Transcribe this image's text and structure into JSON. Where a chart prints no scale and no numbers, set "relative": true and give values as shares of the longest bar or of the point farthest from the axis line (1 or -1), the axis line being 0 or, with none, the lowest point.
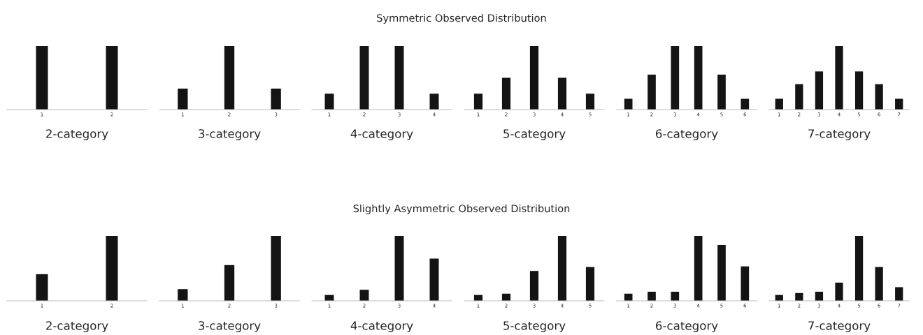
{
  "chart_data": [
    {
      "type": "bar",
      "xlabel": "2-category",
      "categories": [
        "1",
        "2"
      ],
      "values": [
        1,
        1
      ],
      "color": "#141414",
      "relative": true,
      "grid": false,
      "legend": false
    },
    {
      "type": "bar",
      "xlabel": "3-category",
      "categories": [
        "1",
        "2",
        "3"
      ],
      "values": [
        0.33,
        1,
        0.33
      ],
      "color": "#141414",
      "relative": true,
      "grid": false,
      "legend": false
    },
    {
      "type": "bar",
      "xlabel": "4-category",
      "categories": [
        "1",
        "2",
        "3",
        "4"
      ],
      "values": [
        0.25,
        1,
        1,
        0.25
      ],
      "color": "#141414",
      "relative": true,
      "grid": false,
      "legend": false
    },
    {
      "type": "bar",
      "title": "Symmetric Observed Distribution",
      "xlabel": "5-category",
      "categories": [
        "1",
        "2",
        "3",
        "4",
        "5"
      ],
      "values": [
        0.25,
        0.5,
        1,
        0.5,
        0.25
      ],
      "color": "#141414",
      "relative": true,
      "grid": false,
      "legend": false
    },
    {
      "type": "bar",
      "xlabel": "6-category",
      "categories": [
        "1",
        "2",
        "3",
        "4",
        "5",
        "6"
      ],
      "values": [
        0.17,
        0.55,
        1,
        1,
        0.55,
        0.17
      ],
      "color": "#141414",
      "relative": true,
      "grid": false,
      "legend": false
    },
    {
      "type": "bar",
      "xlabel": "7-category",
      "categories": [
        "1",
        "2",
        "3",
        "4",
        "5",
        "6",
        "7"
      ],
      "values": [
        0.17,
        0.4,
        0.6,
        1,
        0.6,
        0.4,
        0.17
      ],
      "color": "#141414",
      "relative": true,
      "grid": false,
      "legend": false
    },
    {
      "type": "bar",
      "xlabel": "2-category",
      "categories": [
        "1",
        "2"
      ],
      "values": [
        0.41,
        1
      ],
      "color": "#141414",
      "relative": true,
      "grid": false,
      "legend": false
    },
    {
      "type": "bar",
      "xlabel": "3-category",
      "categories": [
        "1",
        "2",
        "3"
      ],
      "values": [
        0.18,
        0.55,
        1
      ],
      "color": "#141414",
      "relative": true,
      "grid": false,
      "legend": false
    },
    {
      "type": "bar",
      "xlabel": "4-category",
      "categories": [
        "1",
        "2",
        "3",
        "4"
      ],
      "values": [
        0.09,
        0.17,
        1,
        0.65
      ],
      "color": "#141414",
      "relative": true,
      "grid": false,
      "legend": false
    },
    {
      "type": "bar",
      "title": "Slightly Asymmetric Observed Distribution",
      "xlabel": "5-category",
      "categories": [
        "1",
        "2",
        "3",
        "4",
        "5"
      ],
      "values": [
        0.09,
        0.11,
        0.46,
        1,
        0.52
      ],
      "color": "#141414",
      "relative": true,
      "grid": false,
      "legend": false
    },
    {
      "type": "bar",
      "xlabel": "6-category",
      "categories": [
        "1",
        "2",
        "3",
        "4",
        "5",
        "6"
      ],
      "values": [
        0.11,
        0.14,
        0.14,
        1,
        0.86,
        0.53
      ],
      "color": "#141414",
      "relative": true,
      "grid": false,
      "legend": false
    },
    {
      "type": "bar",
      "xlabel": "7-category",
      "categories": [
        "1",
        "2",
        "3",
        "4",
        "5",
        "6",
        "7"
      ],
      "values": [
        0.09,
        0.12,
        0.14,
        0.28,
        1,
        0.52,
        0.21
      ],
      "color": "#141414",
      "relative": true,
      "grid": false,
      "legend": false
    }
  ]
}
